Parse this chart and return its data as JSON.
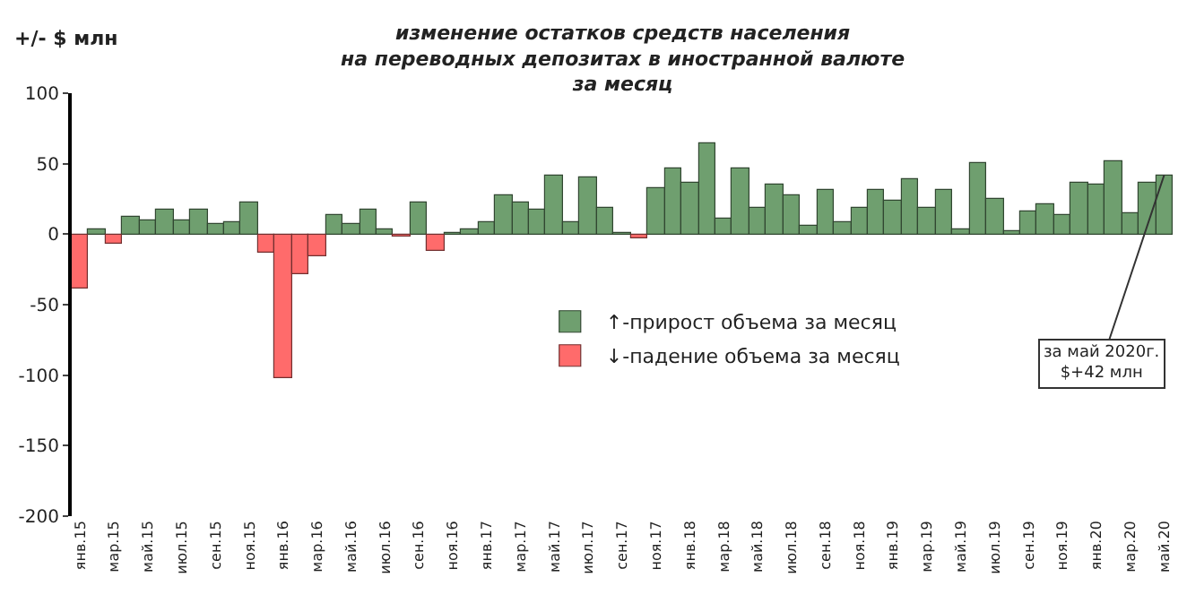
{
  "chart_data": {
    "type": "bar",
    "title": "изменение остатков средств населения\nна переводных депозитах в иностранной валюте\nза месяц",
    "ylabel": "+/- $ млн",
    "categories": [
      "янв.15",
      null,
      "мар.15",
      null,
      "май.15",
      null,
      "июл.15",
      null,
      "сен.15",
      null,
      "ноя.15",
      null,
      "янв.16",
      null,
      "мар.16",
      null,
      "май.16",
      null,
      "июл.16",
      null,
      "сен.16",
      null,
      "ноя.16",
      null,
      "янв.17",
      null,
      "мар.17",
      null,
      "май.17",
      null,
      "июл.17",
      null,
      "сен.17",
      null,
      "ноя.17",
      null,
      "янв.18",
      null,
      "мар.18",
      null,
      "май.18",
      null,
      "июл.18",
      null,
      "сен.18",
      null,
      "ноя.18",
      null,
      "янв.19",
      null,
      "мар.19",
      null,
      "май.19",
      null,
      "июл.19",
      null,
      "сен.19",
      null,
      "ноя.19",
      null,
      "янв.20",
      null,
      "мар.20",
      null,
      "май.20"
    ],
    "series": [
      {
        "name": "↑-прирост объема за месяц",
        "color": "#6f9f6f",
        "values": [
          null,
          4,
          null,
          12,
          10,
          18,
          10,
          18,
          7,
          8,
          23,
          null,
          null,
          null,
          null,
          13,
          7,
          17,
          3,
          null,
          23,
          null,
          1,
          4,
          8,
          27,
          23,
          17,
          42,
          8,
          40,
          19,
          1,
          null,
          32,
          47,
          36,
          65,
          11,
          47,
          19,
          35,
          27,
          6,
          31,
          9,
          19,
          31,
          24,
          39,
          19,
          31,
          4,
          51,
          25,
          2,
          16,
          21,
          14,
          37,
          35,
          52,
          15,
          37,
          42
        ]
      },
      {
        "name": "↓-падение объема за месяц",
        "color": "#ff6b6b",
        "values": [
          -39,
          null,
          -7,
          null,
          null,
          null,
          null,
          null,
          null,
          null,
          null,
          -13,
          -102,
          -28,
          -16,
          null,
          null,
          null,
          null,
          -2,
          null,
          -12,
          null,
          null,
          null,
          null,
          null,
          null,
          null,
          null,
          null,
          null,
          null,
          -3,
          null,
          null,
          null,
          null,
          null,
          null,
          null,
          null,
          null,
          null,
          null,
          null,
          null,
          null,
          null,
          null,
          null,
          null,
          null,
          null,
          null,
          null,
          null,
          null,
          null,
          null,
          null,
          null,
          null,
          null,
          null
        ]
      }
    ],
    "ylim": [
      -200,
      100
    ],
    "yticks": [
      -200,
      -150,
      -100,
      -50,
      0,
      50,
      100
    ],
    "legend": "center",
    "annotations": [
      {
        "text": "за май 2020г.\n$+42 млн",
        "x": "май.20",
        "y": 42
      }
    ]
  }
}
